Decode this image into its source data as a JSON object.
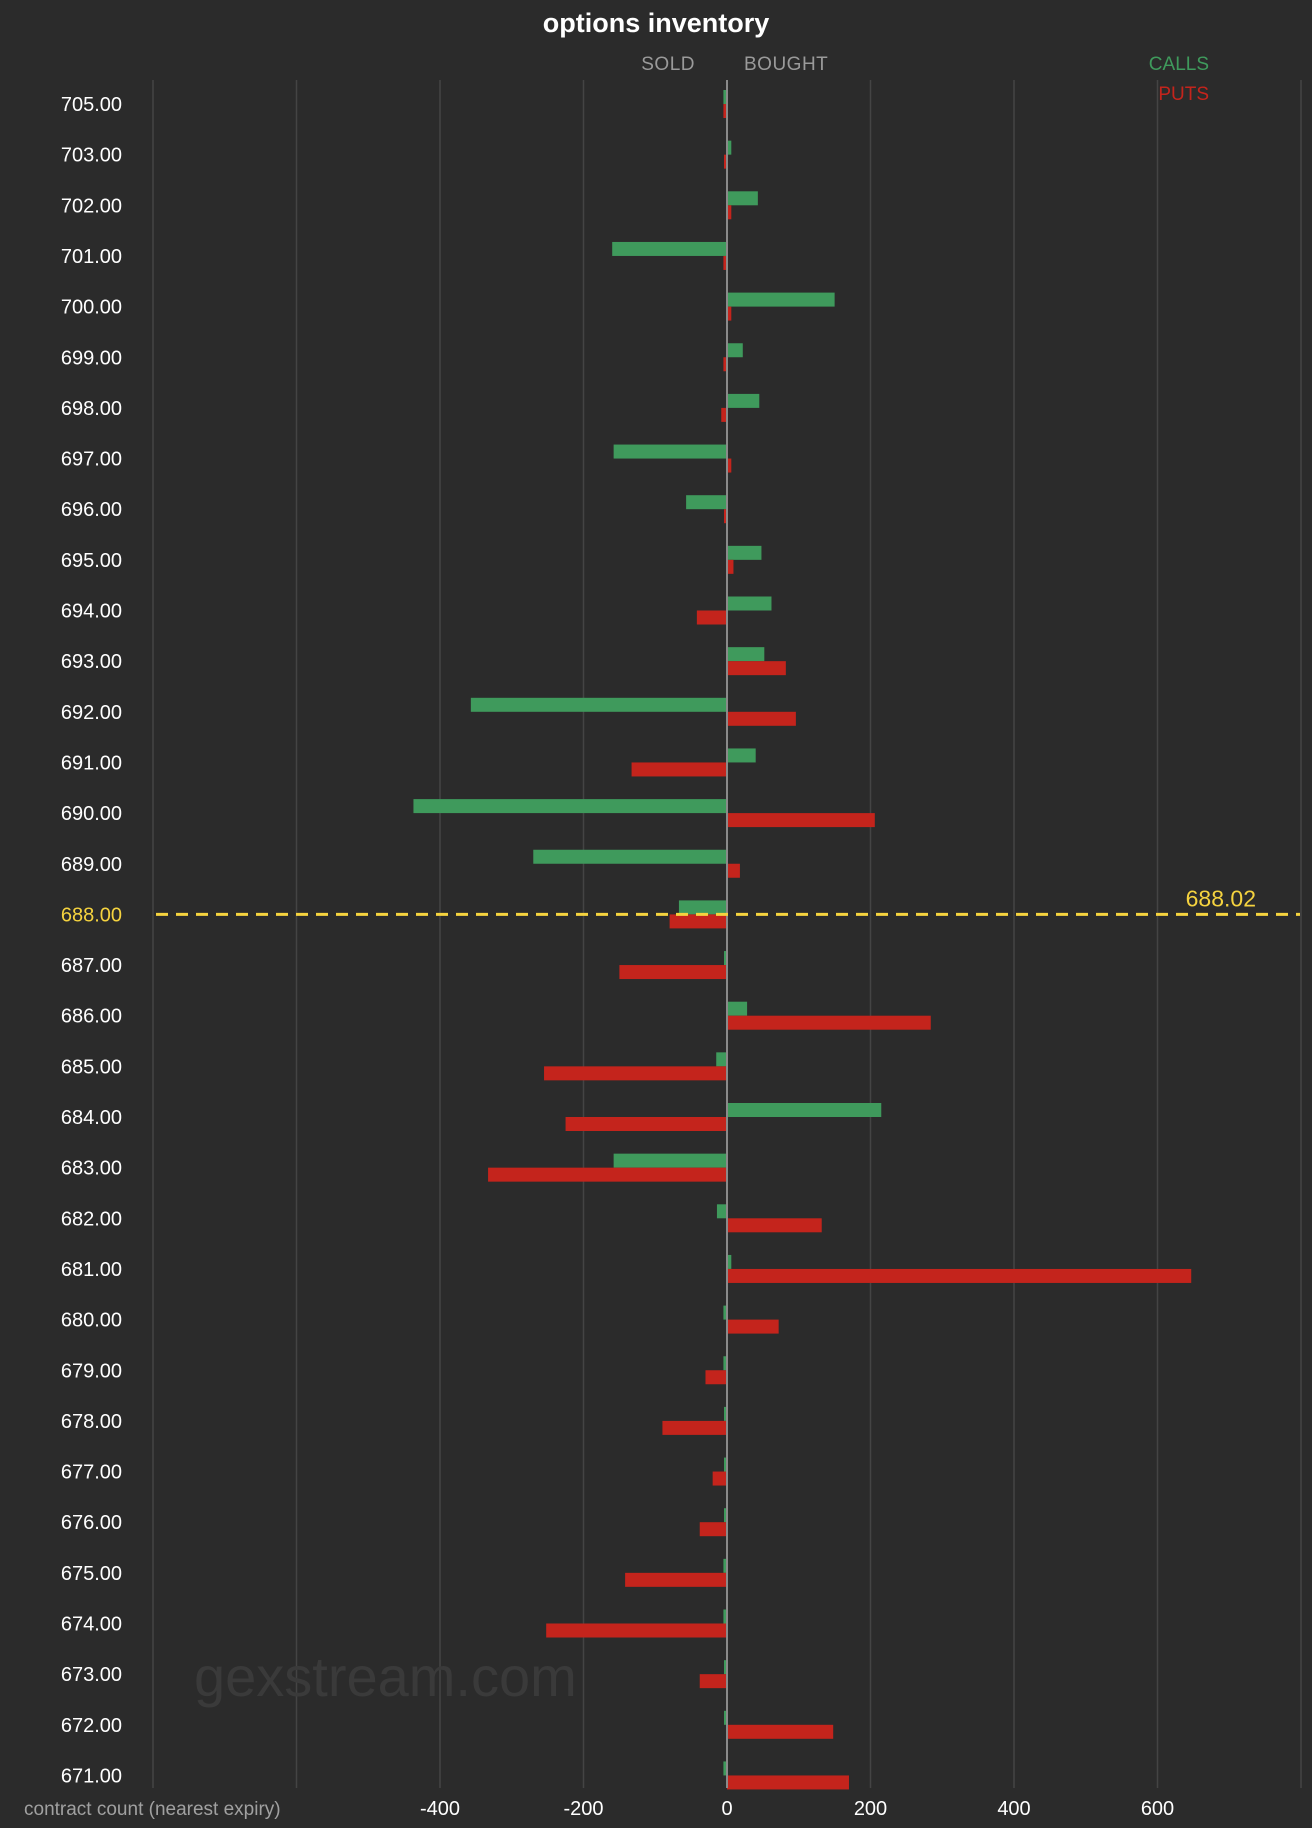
{
  "chart_data": {
    "type": "bar",
    "orientation": "horizontal",
    "title": "options inventory",
    "xlabel": "contract count (nearest expiry)",
    "sold_label": "SOLD",
    "bought_label": "BOUGHT",
    "xlim": [
      -800,
      800
    ],
    "xticks": [
      -400,
      -200,
      0,
      200,
      400,
      600
    ],
    "xtick_labels": [
      "-400",
      "-200",
      "0",
      "200",
      "400",
      "600"
    ],
    "grid": true,
    "legend_position": "top-right",
    "categories": [
      "705.00",
      "703.00",
      "702.00",
      "701.00",
      "700.00",
      "699.00",
      "698.00",
      "697.00",
      "696.00",
      "695.00",
      "694.00",
      "693.00",
      "692.00",
      "691.00",
      "690.00",
      "689.00",
      "688.00",
      "687.00",
      "686.00",
      "685.00",
      "684.00",
      "683.00",
      "682.00",
      "681.00",
      "680.00",
      "679.00",
      "678.00",
      "677.00",
      "676.00",
      "675.00",
      "674.00",
      "673.00",
      "672.00",
      "671.00"
    ],
    "series": [
      {
        "name": "CALLS",
        "color": "#3f9a5c",
        "values": [
          -5,
          6,
          43,
          -160,
          150,
          22,
          45,
          -158,
          -57,
          48,
          62,
          52,
          -357,
          40,
          -437,
          -270,
          -67,
          -4,
          28,
          -15,
          215,
          -158,
          -14,
          6,
          -5,
          -5,
          -4,
          -4,
          -4,
          -5,
          -5,
          -4,
          -4,
          -5
        ]
      },
      {
        "name": "PUTS",
        "color": "#c4241c",
        "values": [
          -5,
          -3,
          6,
          -5,
          6,
          -5,
          -8,
          6,
          -3,
          9,
          -42,
          82,
          96,
          -133,
          206,
          18,
          -80,
          -150,
          284,
          -255,
          -225,
          -333,
          132,
          647,
          72,
          -30,
          -90,
          -20,
          -38,
          -142,
          -252,
          -38,
          148,
          170
        ]
      }
    ],
    "current_price": {
      "value": 688.02,
      "label": "688.02",
      "category": "688.00",
      "color": "#f5d33f"
    },
    "watermark": "gexstream.com"
  }
}
